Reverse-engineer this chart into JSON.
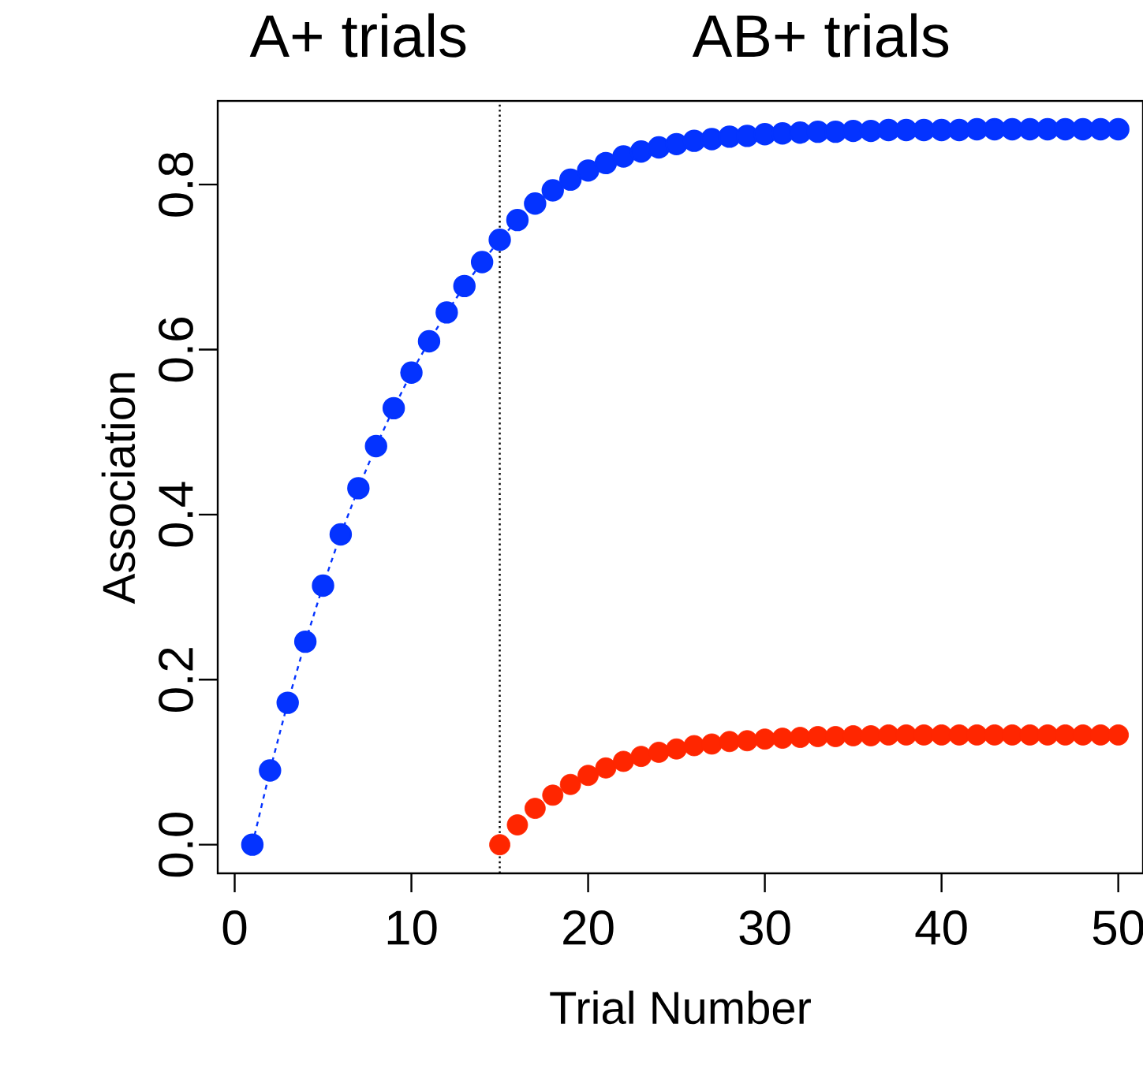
{
  "chart_data": {
    "type": "scatter",
    "xlabel": "Trial Number",
    "ylabel": "Association",
    "annotations": [
      "A+ trials",
      "AB+ trials"
    ],
    "xlim": [
      -0.96,
      51.4
    ],
    "ylim": [
      -0.0347,
      0.9014
    ],
    "xticks": [
      0,
      10,
      20,
      30,
      40,
      50
    ],
    "yticks": [
      {
        "value": 0,
        "label": "0.0"
      },
      {
        "value": 0.2,
        "label": "0.2"
      },
      {
        "value": 0.4,
        "label": "0.4"
      },
      {
        "value": 0.6,
        "label": "0.6"
      },
      {
        "value": 0.8,
        "label": "0.8"
      }
    ],
    "marker": "circle",
    "ref_lines": [
      {
        "axis": "x",
        "value": 15,
        "line_style": "dotted",
        "color": "#000000"
      }
    ],
    "series": [
      {
        "type": "line",
        "line_style": "dashed",
        "color": "#0433ff",
        "x": [
          1,
          2,
          3,
          4,
          5,
          6,
          7,
          8,
          9,
          10,
          11,
          12,
          13,
          14,
          15,
          16,
          17,
          18,
          19,
          20,
          21,
          22,
          23,
          24,
          25,
          26,
          27,
          28,
          29,
          30,
          31,
          32,
          33,
          34,
          35,
          36,
          37,
          38,
          39,
          40,
          41,
          42,
          43,
          44,
          45,
          46,
          47,
          48,
          49,
          50
        ],
        "values": [
          0,
          0.09,
          0.172,
          0.246,
          0.314,
          0.376,
          0.432,
          0.483,
          0.529,
          0.572,
          0.61,
          0.645,
          0.677,
          0.706,
          0.733,
          0.757,
          0.777,
          0.793,
          0.806,
          0.817,
          0.826,
          0.834,
          0.84,
          0.845,
          0.849,
          0.853,
          0.855,
          0.858,
          0.859,
          0.861,
          0.862,
          0.863,
          0.864,
          0.864,
          0.865,
          0.865,
          0.866,
          0.866,
          0.866,
          0.866,
          0.866,
          0.867,
          0.867,
          0.867,
          0.867,
          0.867,
          0.867,
          0.867,
          0.867,
          0.867
        ]
      },
      {
        "color": "#ff2600",
        "x": [
          15,
          16,
          17,
          18,
          19,
          20,
          21,
          22,
          23,
          24,
          25,
          26,
          27,
          28,
          29,
          30,
          31,
          32,
          33,
          34,
          35,
          36,
          37,
          38,
          39,
          40,
          41,
          42,
          43,
          44,
          45,
          46,
          47,
          48,
          49,
          50
        ],
        "values": [
          0,
          0.024,
          0.044,
          0.06,
          0.073,
          0.084,
          0.093,
          0.101,
          0.107,
          0.112,
          0.116,
          0.12,
          0.122,
          0.125,
          0.126,
          0.128,
          0.129,
          0.13,
          0.131,
          0.131,
          0.132,
          0.132,
          0.133,
          0.133,
          0.133,
          0.133,
          0.133,
          0.133,
          0.133,
          0.133,
          0.133,
          0.133,
          0.133,
          0.133,
          0.133,
          0.133
        ]
      }
    ]
  }
}
